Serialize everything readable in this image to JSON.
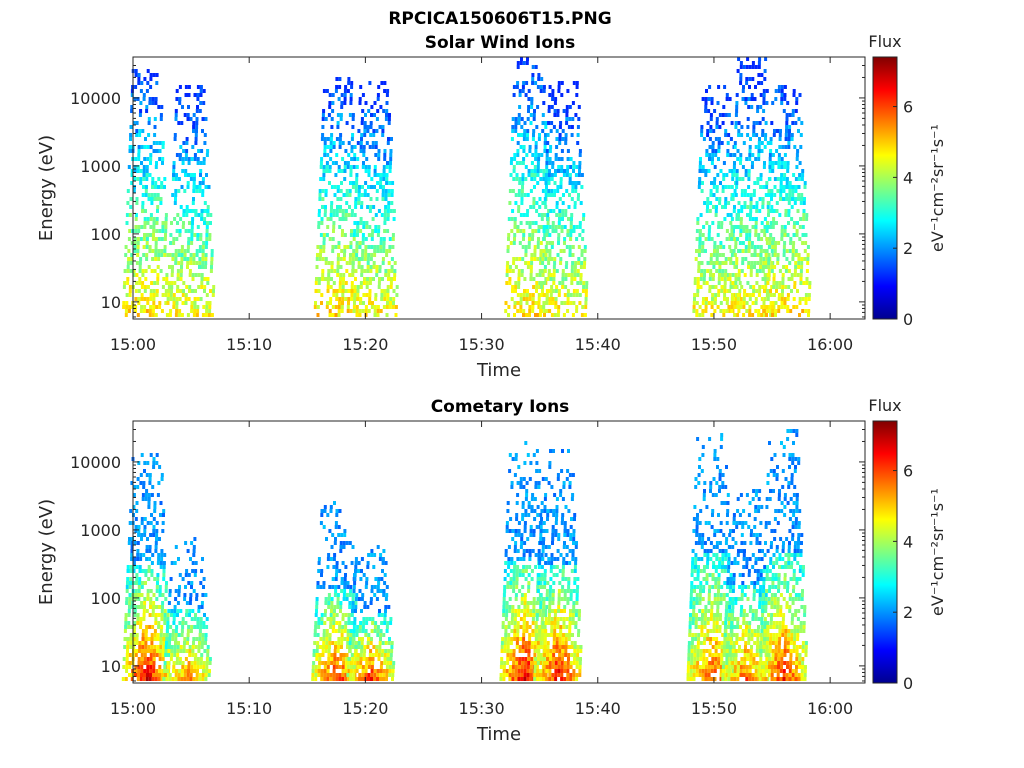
{
  "figure_title": "RPCICA150606T15.PNG",
  "chart_data": [
    {
      "type": "heatmap",
      "title": "Solar Wind Ions",
      "xlabel": "Time",
      "ylabel": "Energy (eV)",
      "xlim": [
        "15:00",
        "16:03"
      ],
      "x_ticks": [
        "15:00",
        "15:10",
        "15:20",
        "15:30",
        "15:40",
        "15:50",
        "16:00"
      ],
      "y_scale": "log",
      "ylim": [
        5.6,
        40000
      ],
      "y_ticks": [
        "10",
        "100",
        "1000",
        "10000"
      ],
      "colorbar": {
        "label": "Flux",
        "units": "eV⁻¹cm⁻²sr⁻¹s⁻¹",
        "range": [
          0,
          7.4
        ],
        "ticks": [
          "0",
          "2",
          "4",
          "6"
        ],
        "colormap": "jet"
      },
      "bursts": [
        {
          "t": "15:01.1",
          "e_low": 6,
          "e_high": 24000,
          "peak_flux": 4.8
        },
        {
          "t": "15:04.9",
          "e_low": 6,
          "e_high": 14000,
          "peak_flux": 4.6
        },
        {
          "t": "15:17.6",
          "e_low": 6,
          "e_high": 19000,
          "peak_flux": 4.8
        },
        {
          "t": "15:20.7",
          "e_low": 6,
          "e_high": 17000,
          "peak_flux": 4.6
        },
        {
          "t": "15:34.0",
          "e_low": 6,
          "e_high": 37000,
          "peak_flux": 4.8
        },
        {
          "t": "15:37.0",
          "e_low": 6,
          "e_high": 17000,
          "peak_flux": 4.6
        },
        {
          "t": "15:50.2",
          "e_low": 6,
          "e_high": 15000,
          "peak_flux": 4.6
        },
        {
          "t": "15:53.2",
          "e_low": 6,
          "e_high": 37000,
          "peak_flux": 4.6
        },
        {
          "t": "15:56.2",
          "e_low": 6,
          "e_high": 15000,
          "peak_flux": 4.8
        }
      ]
    },
    {
      "type": "heatmap",
      "title": "Cometary Ions",
      "xlabel": "Time",
      "ylabel": "Energy (eV)",
      "xlim": [
        "15:00",
        "16:03"
      ],
      "x_ticks": [
        "15:00",
        "15:10",
        "15:20",
        "15:30",
        "15:40",
        "15:50",
        "16:00"
      ],
      "y_scale": "log",
      "ylim": [
        5.6,
        40000
      ],
      "y_ticks": [
        "10",
        "100",
        "1000",
        "10000"
      ],
      "colorbar": {
        "label": "Flux",
        "units": "eV⁻¹cm⁻²sr⁻¹s⁻¹",
        "range": [
          0,
          7.4
        ],
        "ticks": [
          "0",
          "2",
          "4",
          "6"
        ],
        "colormap": "jet"
      },
      "bursts": [
        {
          "t": "15:01.1",
          "e_low": 6,
          "e_high": 13000,
          "peak_flux": 6.6
        },
        {
          "t": "15:04.6",
          "e_low": 6,
          "e_high": 700,
          "peak_flux": 5.6
        },
        {
          "t": "15:17.4",
          "e_low": 6,
          "e_high": 2600,
          "peak_flux": 6.2
        },
        {
          "t": "15:20.4",
          "e_low": 6,
          "e_high": 600,
          "peak_flux": 6.2
        },
        {
          "t": "15:33.6",
          "e_low": 6,
          "e_high": 20000,
          "peak_flux": 6.6
        },
        {
          "t": "15:36.5",
          "e_low": 6,
          "e_high": 15000,
          "peak_flux": 6.4
        },
        {
          "t": "15:49.7",
          "e_low": 6,
          "e_high": 28000,
          "peak_flux": 6.0
        },
        {
          "t": "15:52.7",
          "e_low": 6,
          "e_high": 4000,
          "peak_flux": 5.8
        },
        {
          "t": "15:55.9",
          "e_low": 6,
          "e_high": 28000,
          "peak_flux": 6.2
        }
      ]
    }
  ]
}
